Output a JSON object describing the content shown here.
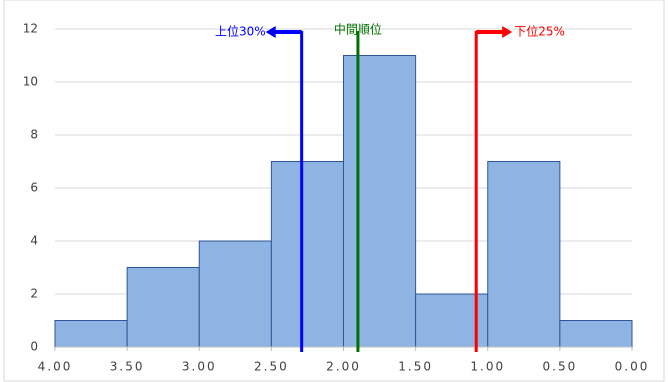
{
  "chart_data": {
    "type": "histogram",
    "bins": [
      4.0,
      3.5,
      3.0,
      2.5,
      2.0,
      1.5,
      1.0,
      0.5,
      0.0
    ],
    "counts": [
      1,
      3,
      4,
      7,
      11,
      2,
      7,
      1
    ],
    "color": "#8db4e2",
    "edge_color": "#2f5597",
    "xlim": [
      4,
      0
    ],
    "xticks": [
      {
        "value": 4,
        "label": "4.00"
      },
      {
        "value": 3.5,
        "label": "3.50"
      },
      {
        "value": 3,
        "label": "3.00"
      },
      {
        "value": 2.5,
        "label": "2.50"
      },
      {
        "value": 2,
        "label": "2.00"
      },
      {
        "value": 1.5,
        "label": "1.50"
      },
      {
        "value": 1,
        "label": "1.00"
      },
      {
        "value": 0.5,
        "label": "0.50"
      },
      {
        "value": 0,
        "label": "0.00"
      }
    ],
    "ylim": [
      0,
      12
    ],
    "yticks": [
      0,
      2,
      4,
      6,
      8,
      10,
      12
    ],
    "grid": true,
    "annotations": [
      {
        "text": "上位30%",
        "x": 2.29,
        "color": "#0000ff",
        "arrow": "left"
      },
      {
        "text": "中間順位",
        "x": 1.9,
        "color": "#007000",
        "arrow": "none"
      },
      {
        "text": "下位25%",
        "x": 1.08,
        "color": "#ff0000",
        "arrow": "right"
      }
    ]
  }
}
